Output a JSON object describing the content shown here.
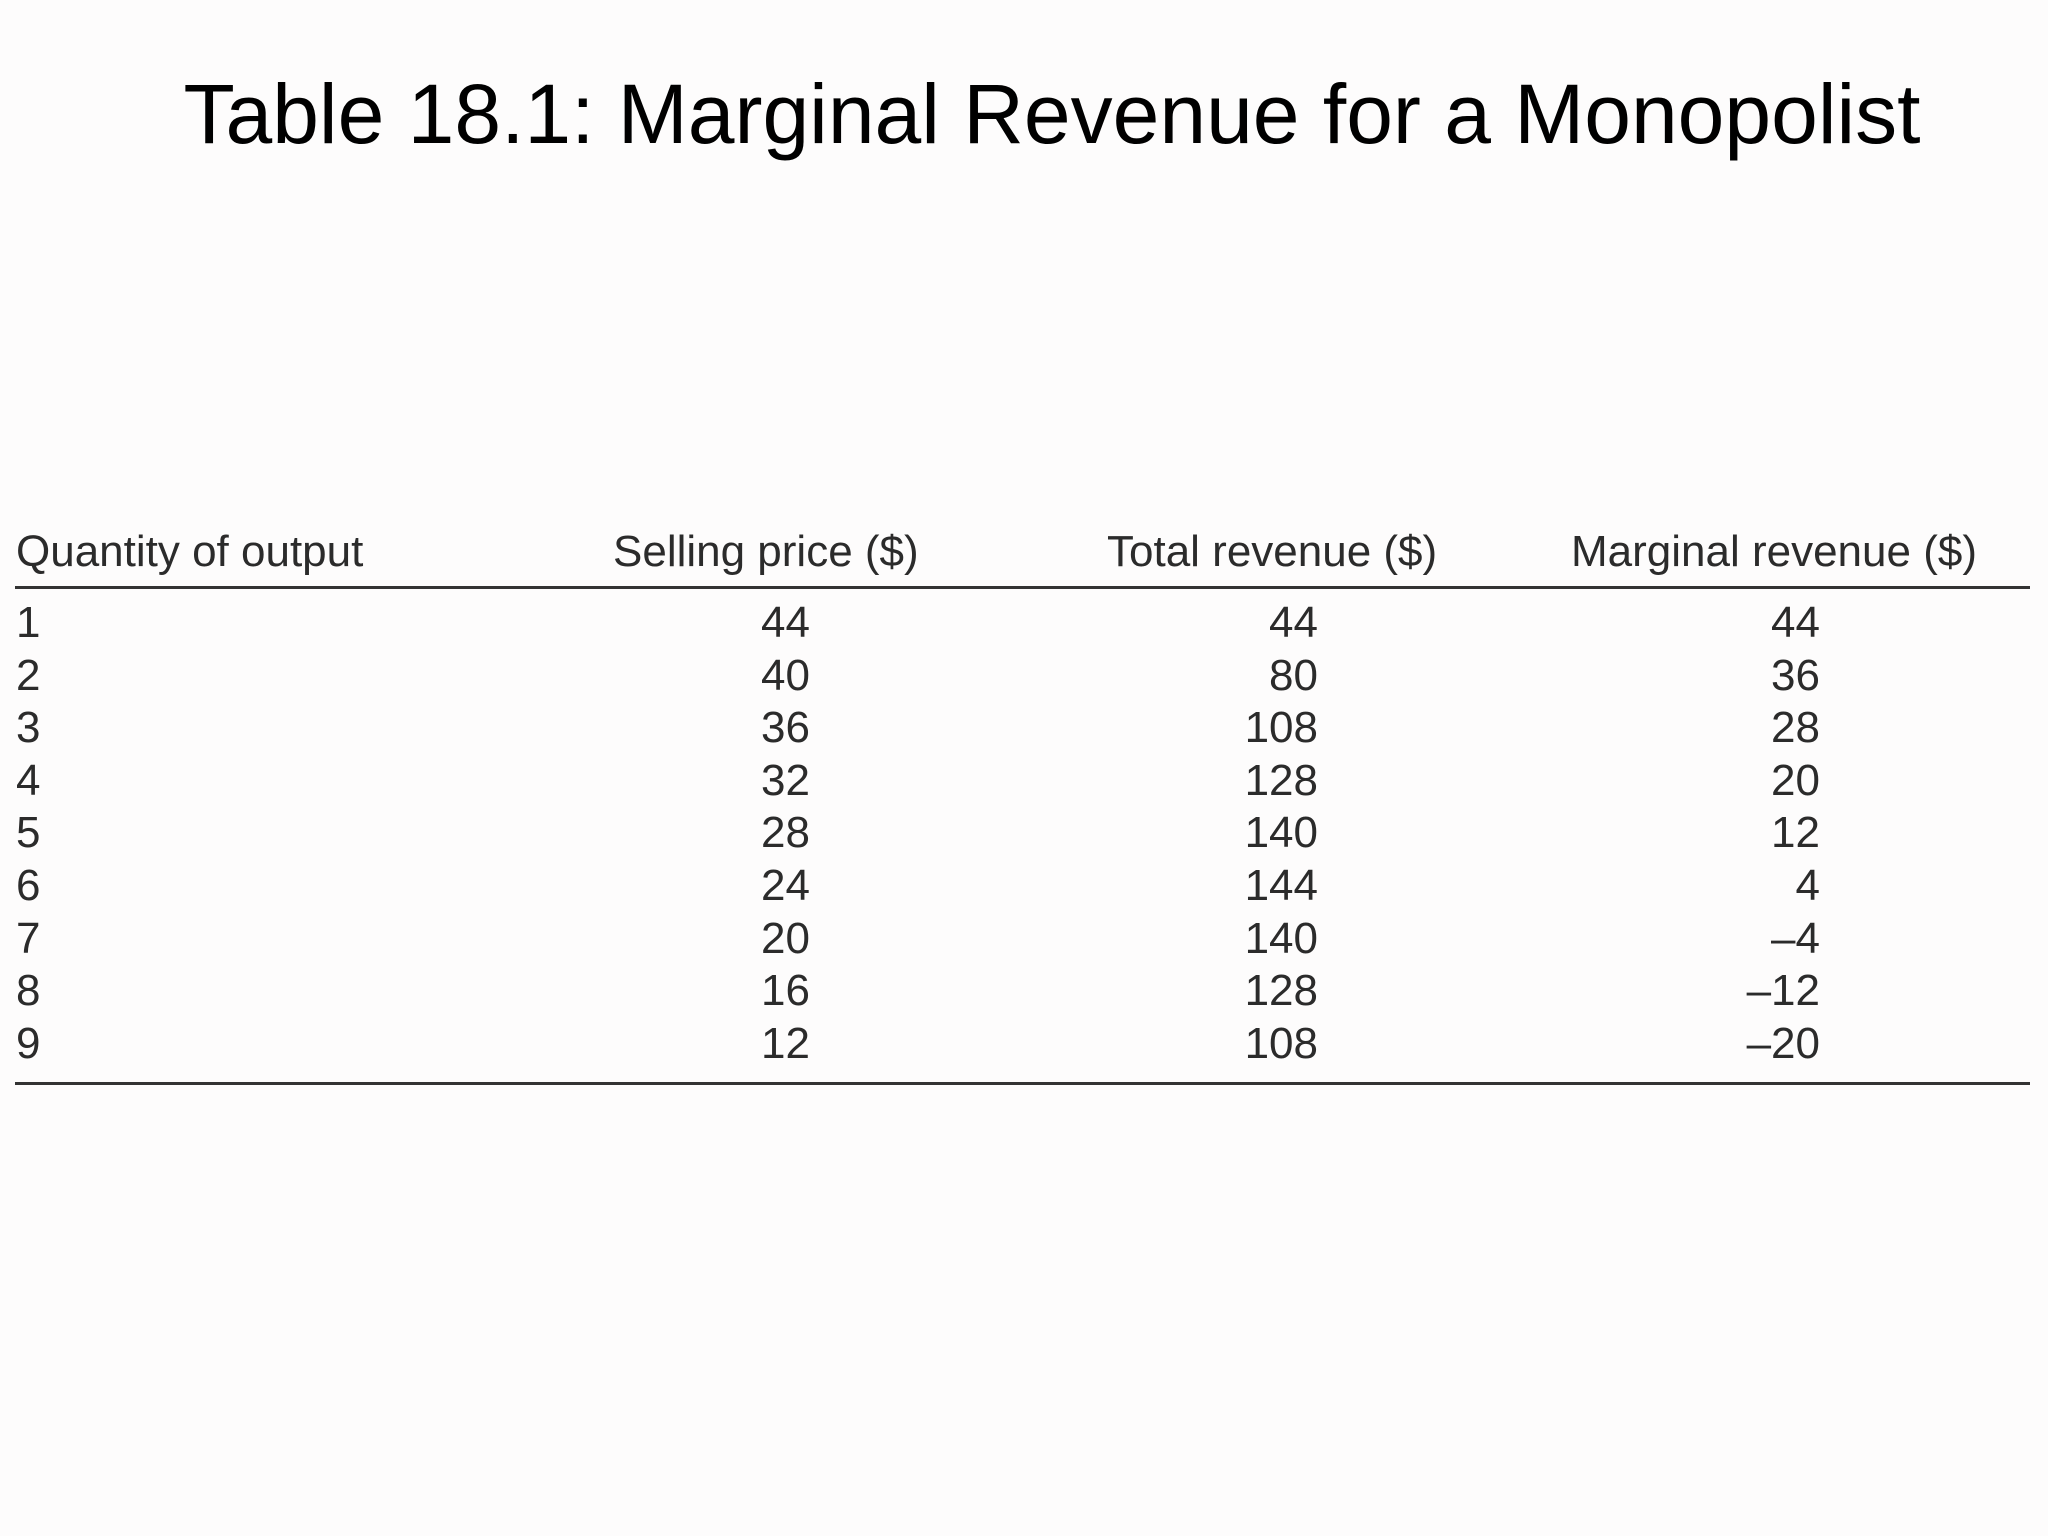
{
  "title": "Table 18.1: Marginal Revenue for a Monopolist",
  "table": {
    "headers": [
      "Quantity of output",
      "Selling price ($)",
      "Total revenue ($)",
      "Marginal revenue ($)"
    ],
    "rows": [
      [
        "1",
        "44",
        "44",
        "44"
      ],
      [
        "2",
        "40",
        "80",
        "36"
      ],
      [
        "3",
        "36",
        "108",
        "28"
      ],
      [
        "4",
        "32",
        "128",
        "20"
      ],
      [
        "5",
        "28",
        "140",
        "12"
      ],
      [
        "6",
        "24",
        "144",
        "4"
      ],
      [
        "7",
        "20",
        "140",
        "–4"
      ],
      [
        "8",
        "16",
        "128",
        "–12"
      ],
      [
        "9",
        "12",
        "108",
        "–20"
      ]
    ]
  }
}
